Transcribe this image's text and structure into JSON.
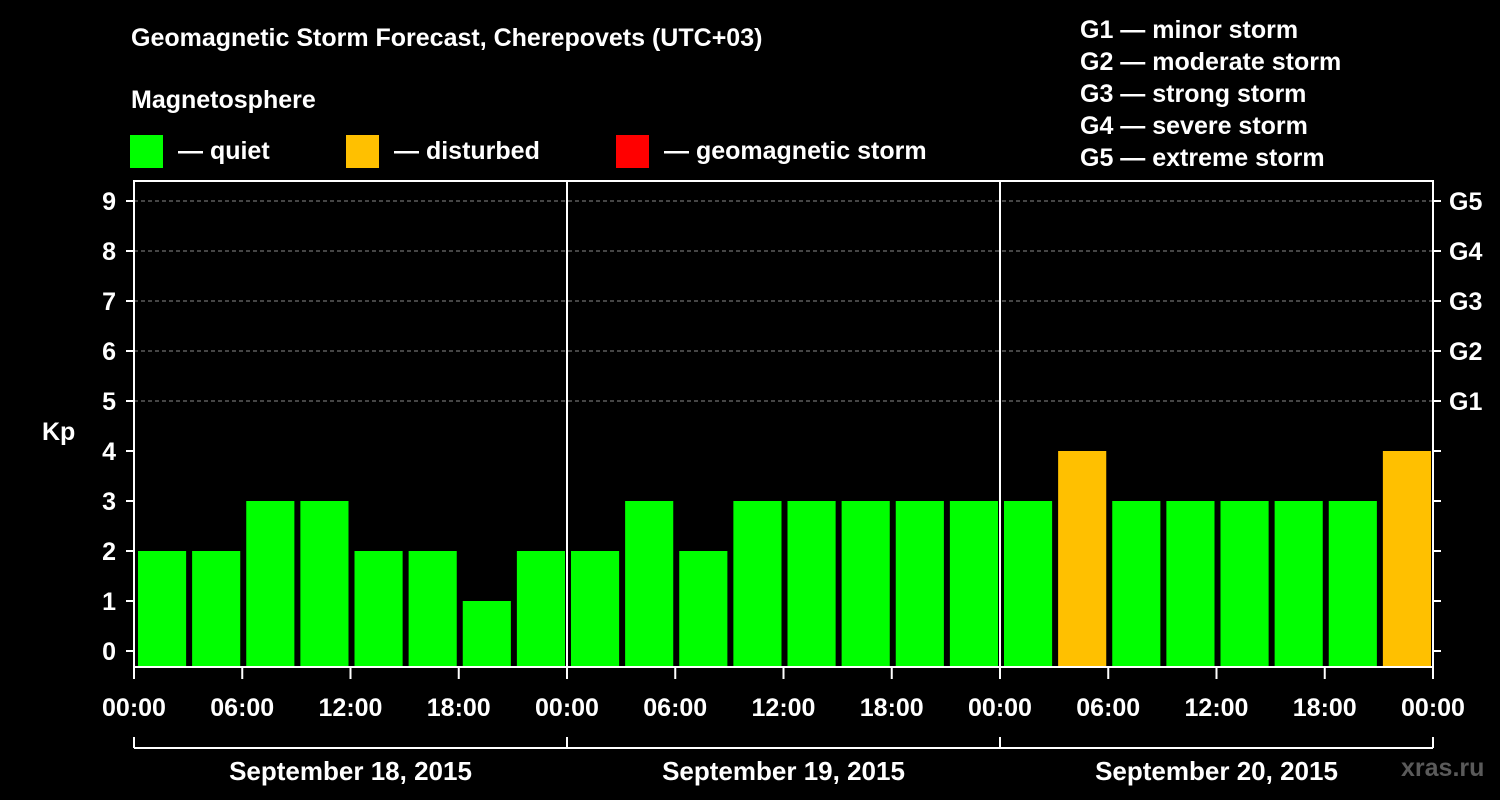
{
  "header": {
    "title": "Geomagnetic Storm Forecast, Cherepovets (UTC+03)",
    "subtitle": "Magnetosphere"
  },
  "legend": [
    {
      "label": "— quiet",
      "color": "#00ff00"
    },
    {
      "label": "— disturbed",
      "color": "#ffc000"
    },
    {
      "label": "— geomagnetic storm",
      "color": "#ff0000"
    }
  ],
  "storm_scale": [
    "G1 — minor storm",
    "G2 — moderate storm",
    "G3 — strong storm",
    "G4 — severe storm",
    "G5 — extreme storm"
  ],
  "watermark": "xras.ru",
  "chart_data": {
    "type": "bar",
    "ylabel": "Kp",
    "ylim": [
      0,
      9
    ],
    "y_ticks": [
      0,
      1,
      2,
      3,
      4,
      5,
      6,
      7,
      8,
      9
    ],
    "right_axis_labels": [
      {
        "kp": 5,
        "label": "G1"
      },
      {
        "kp": 6,
        "label": "G2"
      },
      {
        "kp": 7,
        "label": "G3"
      },
      {
        "kp": 8,
        "label": "G4"
      },
      {
        "kp": 9,
        "label": "G5"
      }
    ],
    "grid": "horizontal dashed at Kp 5-9",
    "x_tick_labels": [
      "00:00",
      "06:00",
      "12:00",
      "18:00",
      "00:00",
      "06:00",
      "12:00",
      "18:00",
      "00:00",
      "06:00",
      "12:00",
      "18:00",
      "00:00"
    ],
    "days": [
      "September 18, 2015",
      "September 19, 2015",
      "September 20, 2015"
    ],
    "categories": [
      "Sep 18 00-03",
      "Sep 18 03-06",
      "Sep 18 06-09",
      "Sep 18 09-12",
      "Sep 18 12-15",
      "Sep 18 15-18",
      "Sep 18 18-21",
      "Sep 18 21-24",
      "Sep 19 00-03",
      "Sep 19 03-06",
      "Sep 19 06-09",
      "Sep 19 09-12",
      "Sep 19 12-15",
      "Sep 19 15-18",
      "Sep 19 18-21",
      "Sep 19 21-24",
      "Sep 20 00-03",
      "Sep 20 03-06",
      "Sep 20 06-09",
      "Sep 20 09-12",
      "Sep 20 12-15",
      "Sep 20 15-18",
      "Sep 20 18-21",
      "Sep 20 21-24"
    ],
    "values": [
      2,
      2,
      3,
      3,
      2,
      2,
      1,
      2,
      2,
      3,
      2,
      3,
      3,
      3,
      3,
      3,
      3,
      4,
      3,
      3,
      3,
      3,
      3,
      4
    ],
    "status": [
      "quiet",
      "quiet",
      "quiet",
      "quiet",
      "quiet",
      "quiet",
      "quiet",
      "quiet",
      "quiet",
      "quiet",
      "quiet",
      "quiet",
      "quiet",
      "quiet",
      "quiet",
      "quiet",
      "quiet",
      "disturbed",
      "quiet",
      "quiet",
      "quiet",
      "quiet",
      "quiet",
      "disturbed"
    ],
    "colors": {
      "quiet": "#00ff00",
      "disturbed": "#ffc000",
      "storm": "#ff0000"
    }
  }
}
